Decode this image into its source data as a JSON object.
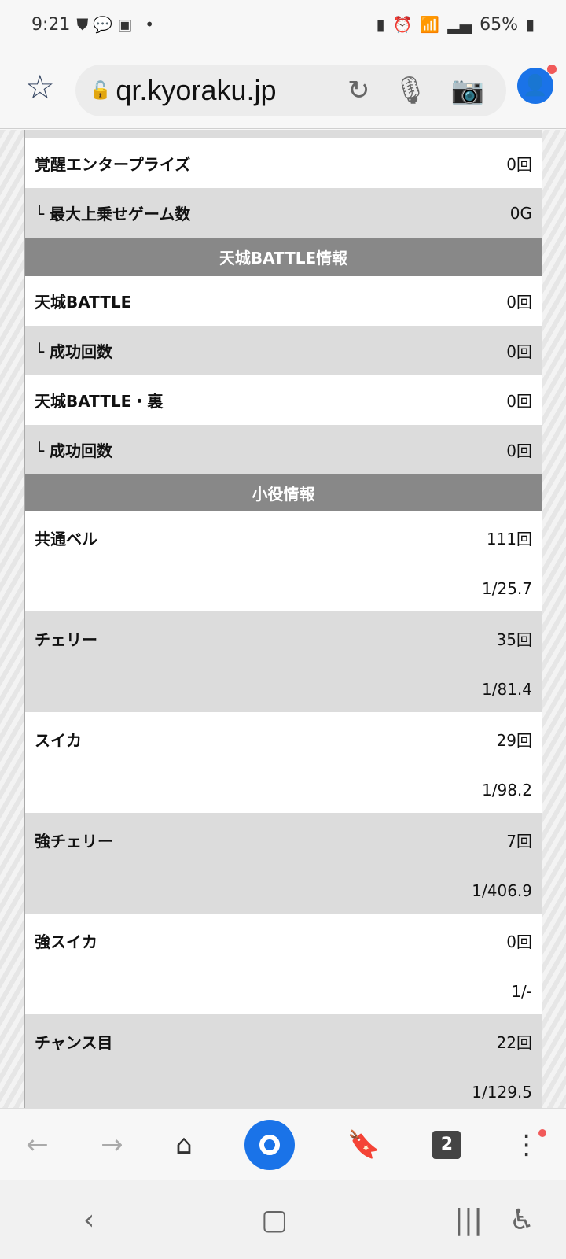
{
  "status": {
    "time": "9:21",
    "battery": "65%"
  },
  "browser": {
    "url": "qr.kyoraku.jp",
    "tab_count": "2"
  },
  "rows_top": [
    {
      "label": "覚醒エンタープライズ",
      "value": "0回",
      "shade": "w"
    },
    {
      "label": "└ 最大上乗せゲーム数",
      "value": "0G",
      "shade": "g"
    }
  ],
  "section1": {
    "title": "天城BATTLE情報",
    "rows": [
      {
        "label": "天城BATTLE",
        "value": "0回",
        "shade": "w"
      },
      {
        "label": "└ 成功回数",
        "value": "0回",
        "shade": "g"
      },
      {
        "label": "天城BATTLE・裏",
        "value": "0回",
        "shade": "w"
      },
      {
        "label": "└ 成功回数",
        "value": "0回",
        "shade": "g"
      }
    ]
  },
  "section2": {
    "title": "小役情報",
    "rows": [
      {
        "label": "共通ベル",
        "value": "111回",
        "prob": "1/25.7",
        "shade": "w"
      },
      {
        "label": "チェリー",
        "value": "35回",
        "prob": "1/81.4",
        "shade": "g"
      },
      {
        "label": "スイカ",
        "value": "29回",
        "prob": "1/98.2",
        "shade": "w"
      },
      {
        "label": "強チェリー",
        "value": "7回",
        "prob": "1/406.9",
        "shade": "g"
      },
      {
        "label": "強スイカ",
        "value": "0回",
        "prob": "1/-",
        "shade": "w"
      },
      {
        "label": "チャンス目",
        "value": "22回",
        "prob": "1/129.5",
        "shade": "g"
      }
    ]
  }
}
